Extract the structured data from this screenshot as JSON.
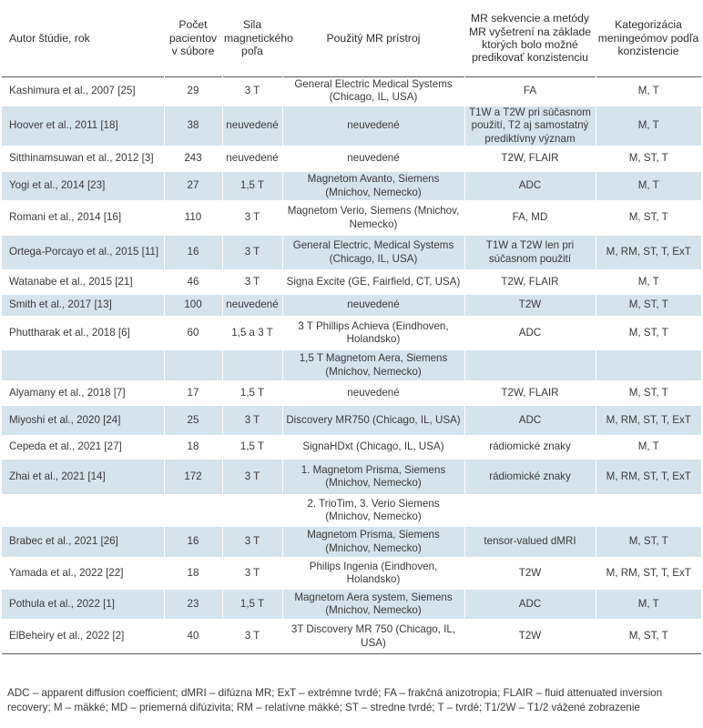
{
  "header": [
    "Autor štúdie, rok",
    "Počet pacientov v súbore",
    "Sila magnetického poľa",
    "Použitý MR prístroj",
    "MR sekvencie a metódy MR vyšetrení na základe ktorých bolo možné predikovať konzistenciu",
    "Kategorizácia meningeómov podľa konzistencie"
  ],
  "rows": [
    {
      "author": "Kashimura et al., 2007 [25]",
      "n": "29",
      "field": "3 T",
      "device": "General Electric Medical Systems (Chicago, IL, USA)",
      "seq": "FA",
      "cat": "M, T",
      "shaded": false
    },
    {
      "author": "Hoover et al., 2011 [18]",
      "n": "38",
      "field": "neuvedené",
      "device": "neuvedené",
      "seq": "T1W a T2W pri súčasnom použití, T2 aj samostatný prediktívny význam",
      "cat": "M, T",
      "shaded": true
    },
    {
      "author": "Sitthinamsuwan et al., 2012 [3]",
      "n": "243",
      "field": "neuvedené",
      "device": "neuvedené",
      "seq": "T2W, FLAIR",
      "cat": "M, ST, T",
      "shaded": false
    },
    {
      "author": "Yogi et al., 2014 [23]",
      "n": "27",
      "field": "1,5 T",
      "device": "Magnetom Avanto, Siemens (Mnichov, Nemecko)",
      "seq": "ADC",
      "cat": "M, T",
      "shaded": true
    },
    {
      "author": "Romani et al., 2014 [16]",
      "n": "110",
      "field": "3 T",
      "device": "Magnetom Verio, Siemens (Mnichov, Nemecko)",
      "seq": "FA, MD",
      "cat": "M, ST, T",
      "shaded": false
    },
    {
      "author": "Ortega-Porcayo et al., 2015 [11]",
      "n": "16",
      "field": "3 T",
      "device": "General Electric, Medical Systems (Chicago, IL, USA)",
      "seq": "T1W a T2W len pri súčasnom použití",
      "cat": "M, RM, ST, T, ExT",
      "shaded": true
    },
    {
      "author": "Watanabe et al., 2015 [21]",
      "n": "46",
      "field": "3 T",
      "device": "Signa Excite (GE, Fairfield, CT, USA)",
      "seq": "T2W, FLAIR",
      "cat": "M, T",
      "shaded": false
    },
    {
      "author": "Smith et al., 2017 [13]",
      "n": "100",
      "field": "neuvedené",
      "device": "neuvedené",
      "seq": "T2W",
      "cat": "M, ST, T",
      "shaded": true
    },
    {
      "author": "Phuttharak et al., 2018 [6]",
      "n": "60",
      "field": "1,5 a 3 T",
      "device": "3 T Phillips Achieva (Eindhoven, Holandsko)",
      "seq": "ADC",
      "cat": "M, ST, T",
      "shaded": false
    },
    {
      "author": "",
      "n": "",
      "field": "",
      "device": "1,5 T Magnetom Aera, Siemens (Mnichov, Nemecko)",
      "seq": "",
      "cat": "",
      "shaded": true
    },
    {
      "author": "Alyamany et al., 2018 [7]",
      "n": "17",
      "field": "1,5 T",
      "device": "neuvedené",
      "seq": "T2W, FLAIR",
      "cat": "M, ST, T",
      "shaded": false
    },
    {
      "author": "Miyoshi et al., 2020 [24]",
      "n": "25",
      "field": "3 T",
      "device": "Discovery MR750 (Chicago, IL, USA)",
      "seq": "ADC",
      "cat": "M, RM, ST, T, ExT",
      "shaded": true
    },
    {
      "author": "Cepeda et al., 2021 [27]",
      "n": "18",
      "field": "1,5 T",
      "device": "SignaHDxt (Chicago, IL, USA)",
      "seq": "rádiomické znaky",
      "cat": "M, T",
      "shaded": false
    },
    {
      "author": "Zhai et al., 2021 [14]",
      "n": "172",
      "field": "3 T",
      "device": "1. Magnetom Prisma, Siemens (Mnichov, Nemecko)",
      "seq": "rádiomické znaky",
      "cat": "M, RM, ST, T, ExT",
      "shaded": true
    },
    {
      "author": "",
      "n": "",
      "field": "",
      "device": "2. TrioTim, 3. Verio Siemens (Mnichov, Nemecko)",
      "seq": "",
      "cat": "",
      "shaded": false
    },
    {
      "author": "Brabec et al., 2021 [26]",
      "n": "16",
      "field": "3 T",
      "device": "Magnetom Prisma, Siemens (Mnichov, Nemecko)",
      "seq": "tensor-valued dMRI",
      "cat": "M, ST, T",
      "shaded": true
    },
    {
      "author": "Yamada et al., 2022 [22]",
      "n": "18",
      "field": "3 T",
      "device": "Philips Ingenia (Eindhoven, Holandsko)",
      "seq": "T2W",
      "cat": "M, RM, ST, T, ExT",
      "shaded": false
    },
    {
      "author": "Pothula et al., 2022 [1]",
      "n": "23",
      "field": "1,5 T",
      "device": "Magnetom Aera system, Siemens (Mnichov, Nemecko)",
      "seq": "ADC",
      "cat": "M, T",
      "shaded": true
    },
    {
      "author": "ElBeheiry et al., 2022 [2]",
      "n": "40",
      "field": "3 T",
      "device": "3T Discovery MR 750 (Chicago, IL, USA)",
      "seq": "T2W",
      "cat": "M, ST, T",
      "shaded": false
    }
  ],
  "footnote": "ADC – apparent diffusion coefficient; dMRI – difúzna MR; ExT – extrémne tvrdé; FA – frakčná anizotropia; FLAIR – fluid attenuated inversion recovery; M – mäkké; MD – priemerná difúzivita; RM – relatívne mäkké; ST – stredne tvrdé; T – tvrdé; T1/2W – T1/2 vážené zobrazenie"
}
